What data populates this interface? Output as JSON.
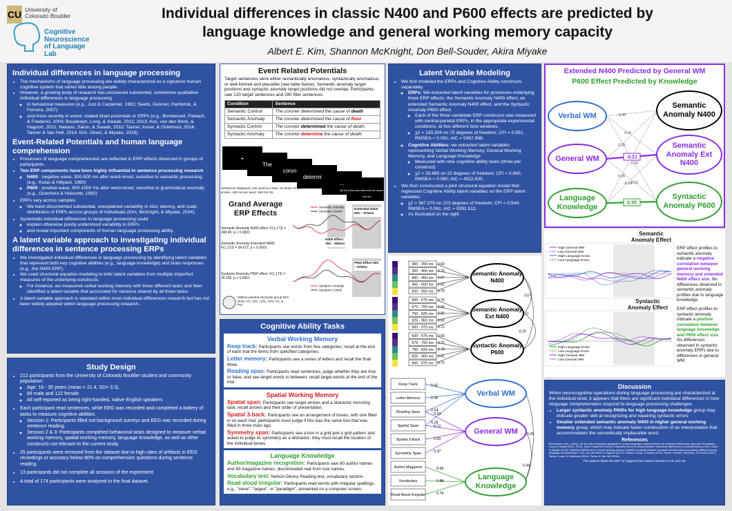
{
  "header": {
    "university": "University of Colorado Boulder",
    "lab": "Cognitive Neuroscience of Language Lab",
    "title_line1": "Individual differences in classic N400 and P600 effects are predicted by",
    "title_line2": "language knowledge and general working memory capacity",
    "authors": "Albert E. Kim, Shannon McKnight, Don Bell-Souder, Akira Miyake"
  },
  "intro": {
    "sections": [
      {
        "heading": "Individual differences in language processing",
        "items": [
          "The mechanisms of language processing are widely characterized as a signature human cognitive system that varies little among people.",
          {
            "text": "However, a growing body of research has uncovered substantial, sometimes qualitative individual differences in language processing",
            "items": [
              "in behavioral measures (e.g., Just & Carpenter, 1992; Swets, Desmet, Hambrick, & Ferreira, 2007)",
              "and more recently in event- related brain potentials or ERPs (e.g., Bornkessel, Fiebach, & Friederici, 2004; Boudewyn, Long, & Swaab, 2012, 2013; Kos, van den Brink, & Hagoort, 2012; Nakano, Saron, & Swaab, 2010; Tanner, Inoue, & Osterhout, 2014; Tanner & Van Hell, 2014; Kim, Oines, & Miyake, 2018)."
            ]
          }
        ]
      },
      {
        "heading": "Event-Related Potentials and human language comprehension",
        "items": [
          "Processes of language comprehension are reflected in ERP effects observed in groups of participants.",
          {
            "lead": "Two ERP components have been highly influential in sentence processing research",
            "items": [
              {
                "lead": "N400",
                "text": ": negative wave, 300-500 ms after word-onset, sensitive to semantic processing (e.g., Kutas & Hillyard, 1980)"
              },
              {
                "lead": "P600",
                "text": ": positive wave, 600-1000 ms after word-onset, sensitive to grammatical anomaly (e.g., Osterhout & Holcomb, 1992)"
              }
            ]
          },
          {
            "text": "ERPs vary across samples.",
            "items": [
              "We have documented substantial, unexplained variability in size, latency, and scalp distribution of ERPs across groups of individuals (Kim, McKnight, & Miyake, 2024)."
            ]
          },
          {
            "text": "Systematic individual differences in language processing could",
            "items": [
              "explain otherwise poorly understood variability in ERPs",
              "and reveal important components of human language processing ability."
            ]
          }
        ]
      },
      {
        "heading": "A latent variable approach to investigating individual differences in sentence processing ERPs",
        "items": [
          "We investigated individual differences in language processing by identifying latent variables that represent both key cognitive abilities (e.g., language knowledge) and brain responses (e.g., the N400 ERP).",
          {
            "text": "We used structural equation modeling to infer latent variables from multiple imperfect measures of the underlying constructs.",
            "items": [
              "For instance, we measured verbal working memory with three different tasks and then identified a latent variable that accounted for variance shared by all three tasks."
            ]
          },
          "A latent variable approach is standard within most individual differences research but has not been widely adopted within language processing research."
        ]
      }
    ]
  },
  "study_design": {
    "heading": "Study Design",
    "items": [
      {
        "text": "212 participants from the University of Colorado Boulder student and community population.",
        "items": [
          "Age: 18 - 35 years  (mean = 21.4, SD= 3.3).",
          "89 male and 122 female",
          "All self-reported as being right-handed, native English speakers"
        ]
      },
      {
        "text": "Each participant read sentences, while EEG was recorded and completed a battery of tasks to measure cognitive abilities.",
        "items": [
          "Session 1: Participants filled out background surveys and EEG was recorded during sentence reading.",
          "Session 2 & 3: Participants completed behavioral tasks designed to measure verbal working memory,  spatial working memory, language knowledge, as well as other constructs not relevant to the current study."
        ]
      },
      "25 participants were removed from the dataset due to high rates of artifacts in EEG recordings or accuracy below 80% on comprehension questions during sentence reading.",
      "13 participants did not complete all sessions of the experiment.",
      "A total of 174 participants were analyzed in the final dataset."
    ]
  },
  "erp": {
    "heading": "Event Related Potentials",
    "paragraph": "Target sentences were either semantically anomalous, syntactically anomalous, or well-formed and plausible (see table below).  Semantic anomaly target positions and syntactic anomaly target positions did not overlap.  Participants saw 120 target sentences and 280 filler sentences.",
    "table": {
      "header": [
        "Condition",
        "Sentence"
      ],
      "rows": [
        {
          "condition": "Semantic Control",
          "before": "The coroner determined the cause of ",
          "target": "death",
          "after": "",
          "target_color": "#000000"
        },
        {
          "condition": "Semantic Anomaly",
          "before": "The coroner determined the cause of ",
          "target": "floor",
          "after": "",
          "target_color": "#e00000"
        },
        {
          "condition": "Syntactic Control",
          "before": "The coroner ",
          "target": "determined",
          "after": " the cause of death.",
          "target_color": "#000000"
        },
        {
          "condition": "Syntactic Anomaly",
          "before": "The coroner ",
          "target": "determine",
          "after": " the cause of death.",
          "target_color": "#e00000"
        }
      ]
    },
    "slides": [
      "+",
      "The",
      "coroner",
      "determined",
      "...",
      "Did the policeman determine the cause of death?"
    ],
    "slide_answers": "Yes          No",
    "slide_caption": "Sentences displayed: one word at a time, at center of the screen, 400 ms per word, 150 ms ISI.",
    "grand_heading": "Grand Average ERP Effects",
    "stats": [
      "Semantic Anomaly N400 effect: F(1,173) = 248.45, p < 0.0001",
      "Semantic Anomaly Extended N400: F(1,173) = 34.572, p < 0.0001",
      "Syntactic Anomaly P600 effect: F(1,173) = 30.035, p < 0.0001"
    ],
    "windows": {
      "ext": "Extended N400 600 – 975ms",
      "n400": "N400 Effect 300 – 550ms",
      "p600": "P600 Effect 600 – 975ms"
    },
    "legend_semantic": [
      "Semantic Anomaly",
      "Semantic Control"
    ],
    "legend_syntactic": [
      "Syntactic Anomaly",
      "Syntactic Control"
    ],
    "roi": "Midline-parietal electrode group ROI (POz, Pz, CPz, CP1, CP2, P1, & P2)"
  },
  "tasks": {
    "heading": "Cognitive Ability Tasks",
    "sections": [
      {
        "heading": "Verbal Working Memory",
        "color": "#2f6fd0",
        "items": [
          {
            "name": "Keep track:",
            "desc": "Participants see words from five categories; recall at the end of each trial the items from specified categories."
          },
          {
            "name": "Letter memory:",
            "desc": "Participants see a series of letters and recall the final three"
          },
          {
            "name": "Reading span:",
            "desc": "Participants read sentences, judge whether they are true or false, and see target words in between; recall target words at the end of the trial"
          }
        ]
      },
      {
        "heading": "Spatial Working Memory",
        "color": "#d42020",
        "items": [
          {
            "name": "Spatial span:",
            "desc": "Participants see target arrows and a distractor mirroring task; recall arrows and their order of presentation."
          },
          {
            "name": "Spatial 3-back:",
            "desc": "Participants see an arrangement of boxes, with one filled in on each trial; participants must judge if this was the same box that was filled in three trials ago."
          },
          {
            "name": "Symmetry span:",
            "desc": "Participants see a box in a grid and a grid pattern and asked to judge its symmetry as a distractor; they must recall the location of the individual boxes."
          }
        ]
      },
      {
        "heading": "Language Knowledge",
        "color": "#2f9e2f",
        "items": [
          {
            "name": "Author/magazine recognition:",
            "desc": "Participants saw 80 author names and 80 magazine names, discriminated real from lure names."
          },
          {
            "name": "Vocabulary test:",
            "desc": "Nelson-Denny Reading test, vocabulary section."
          },
          {
            "name": "Read aloud irregular:",
            "desc": "Participants read words with irregular spellings, e.g., \"sieve\", \"segue\", or \"paradigm\", presented on a computer screen."
          }
        ]
      }
    ]
  },
  "latent": {
    "heading": "Latent Variable Modeling",
    "items": [
      {
        "text": "We first modeled the ERPs and Cognitive Ability constructs separately.",
        "items": [
          {
            "lead": "ERPs:",
            "text": "We extracted latent variables for processes underlying three ERP effects:  the Semantic Anomaly N400 effect, an extended Semantic Anomaly N400 effect, and the Syntactic Anomaly P600 effect.",
            "items": [
              "Each of the three candidate ERP constructs was measured with central-parietal ERPs, in the appropriate experimental conditions, at five different time windows.",
              "χ2 = 183.304 on 75 degrees of freedom; CFI = 0.951; RMSEA = 0.091; AIC = 5367.998."
            ]
          },
          {
            "lead": "Cognitive Abilities:",
            "text": "we extracted latent variables representing Verbal Working Memory, General Working Memory, and Language Knowledge",
            "items": [
              "Measured with nine cognitive ability tasks (three per construct)",
              "χ2 = 35.865 on 22 degrees of freedom; CFI = 0.960; RMSEA = 0.060; AIC = 4022.620."
            ]
          }
        ]
      },
      {
        "text": "We then constructed a joint structural equation model that regressed Cognitive Ability latent variables on the ERP latent variables.",
        "items": [
          "χ2 = 367.270 on 223 degrees of freedom; CFI = 0.944; RMSEA = 0.061; AIC = 9391.512.",
          "As illustrated on the right"
        ]
      }
    ]
  },
  "sem": {
    "erp_latents": [
      {
        "label": "Semantic Anomaly N400",
        "indicators": [
          {
            "label": "300 - 350 ms",
            "loading": "0.60"
          },
          {
            "label": "350 - 400 ms",
            "loading": "0.79"
          },
          {
            "label": "400 - 450 ms",
            "loading": "0.87"
          },
          {
            "label": "450 - 500 ms",
            "loading": "0.82"
          },
          {
            "label": "500 - 550 ms",
            "loading": "0.73"
          }
        ]
      },
      {
        "label": "Semantic Anomaly Ext N400",
        "indicators": [
          {
            "label": "600 - 675 ms",
            "loading": "0.75"
          },
          {
            "label": "675 - 750 ms",
            "loading": "0.80"
          },
          {
            "label": "750 - 825 ms",
            "loading": "0.85"
          },
          {
            "label": "825 - 900 ms",
            "loading": "0.83"
          },
          {
            "label": "900 - 975 ms",
            "loading": "0.72"
          }
        ]
      },
      {
        "label": "Syntactic Anomaly P600",
        "indicators": [
          {
            "label": "600 - 675 ms",
            "loading": "0.66"
          },
          {
            "label": "675 - 750 ms",
            "loading": "0.75"
          },
          {
            "label": "750 - 825 ms",
            "loading": "0.78"
          },
          {
            "label": "825 - 900 ms",
            "loading": "0.81"
          },
          {
            "label": "900 - 975 ms",
            "loading": "0.73"
          }
        ]
      }
    ],
    "erp_correlations": [
      "0.57",
      "-0.11",
      "-0.20"
    ],
    "tasks": [
      "Keep Track",
      "Letter Memory",
      "Reading Span",
      "Spatial Span",
      "Spatial 3-Back",
      "Symmetry Span",
      "Author Magazine",
      "Vocabulary",
      "Read Aloud Irregular"
    ],
    "cog_latents": [
      {
        "label": "Verbal WM",
        "color": "#2f6fd0",
        "loadings": [
          "0.42",
          "0.46",
          "0.54",
          "0.28",
          null,
          null,
          null,
          null,
          null
        ]
      },
      {
        "label": "General WM",
        "color": "#8a2be2",
        "loadings": [
          null,
          null,
          "0.53",
          "0.72",
          "0.60",
          "0.37",
          null,
          null,
          null
        ]
      },
      {
        "label": "Language Knowledge",
        "color": "#2f9e2f",
        "loadings": [
          null,
          null,
          null,
          null,
          null,
          null,
          "0.66",
          "0.88",
          "0.78"
        ]
      }
    ],
    "cog_correlations": [
      "0.29",
      "0.44"
    ]
  },
  "model": {
    "title1": "Extended N400 Predicted by General WM",
    "title1_color": "#8a2be2",
    "title2": "P600 Effect Predicted by Knowledge",
    "title2_color": "#2f9e2f",
    "predictors": [
      {
        "label": "Verbal WM",
        "color": "#2f6fd0"
      },
      {
        "label": "General WM",
        "color": "#8a2be2"
      },
      {
        "label": "Language Knowledge",
        "color": "#2f9e2f"
      }
    ],
    "outcomes": [
      {
        "label": "Semantic Anomaly N400",
        "color": "#000000"
      },
      {
        "label": "Semantic Anomaly Ext N400",
        "color": "#8a2be2"
      },
      {
        "label": "Syntactic Anomaly P600",
        "color": "#2f9e2f"
      }
    ],
    "paths": [
      {
        "label": "-0.08",
        "highlight": false,
        "color": "#888888"
      },
      {
        "label": "0.16",
        "highlight": false,
        "color": "#888888"
      },
      {
        "label": "-0.14",
        "highlight": false,
        "color": "#888888"
      },
      {
        "label": "0.18",
        "highlight": false,
        "color": "#888888"
      },
      {
        "label": "-0.21",
        "highlight": true,
        "color": "#8a2be2"
      },
      {
        "label": "-0.13",
        "highlight": false,
        "color": "#888888"
      },
      {
        "label": "0.06",
        "highlight": false,
        "color": "#888888"
      },
      {
        "label": "-0.19",
        "highlight": false,
        "color": "#888888"
      },
      {
        "label": "0.30",
        "highlight": true,
        "color": "#2f9e2f"
      }
    ]
  },
  "profiles": {
    "semantic_title": "Semantic Anomaly Effect",
    "semantic_legend": [
      "High General WM",
      "Low General WM",
      "High Language Know.",
      "Low Language Know."
    ],
    "semantic_text": [
      {
        "text": "ERP effect profiles to semantic anomaly indicate a "
      },
      {
        "text": "negative correlation between general working memory and extended N400 effect size",
        "color": "#8a2be2"
      },
      {
        "text": ". No differences observed in semantic anomaly profiles due to language knowledge"
      }
    ],
    "syntactic_title": "Syntactic Anomaly Effect",
    "syntactic_legend": [
      "High Language Know",
      "Low Language Know",
      "High General WM",
      "Low General WM"
    ],
    "syntactic_text": [
      {
        "text": "ERP effect profiles to syntactic anomaly indicate a "
      },
      {
        "text": "positive correlation between language knowledge and P600 effect size",
        "color": "#2f9e2f"
      },
      {
        "text": ". No differences observed in syntactic anomaly ERPs due to differences in general WM"
      }
    ]
  },
  "discussion": {
    "heading": "Discussion",
    "paragraph": "When neurocognitive operations during language processing are characterized at the individual level, it appears that there are significant individual differences in how language comprehenders respond to language processing challenges.",
    "items": [
      {
        "lead": "Larger syntactic anomaly P600s for high language knowledge",
        "text": "group may indicate greater skill at recognizing and repairing syntactic errors"
      },
      {
        "lead": "Smaller extended semantic anomaly N400 in higher general working memory",
        "text": "group, which may indicate faster construction of an interpretation that accommodates the semantically implausible word."
      }
    ],
    "references_heading": "References",
    "references": "Bornkessel, et al., (2004). On the role of syntactic ambiguity in human language comprehension: An individual differences approach. Boudewyn, Long, & Swaab (2012, 2013). Just & Carpenter (1992). A capacity theory of comprehension: Individual differences in working memory. Kim, Oines, & Miyake (2018). Individual differences in verbal working memory underlie a tradeoff between semantic and structural processing difficulty during language comprehension. Kos, van den Brink, & Hagoort (2012). Nakano, Saron, & Swaab (2010). Swets, Desmet, Hambrick, & Ferreira (2007). Tanner, Inoue, & Osterhout (2014). Tanner & Van Hell (2014).",
    "thanks": "The authors thank the NSF for support from Award 1431223 to AK and AM."
  }
}
